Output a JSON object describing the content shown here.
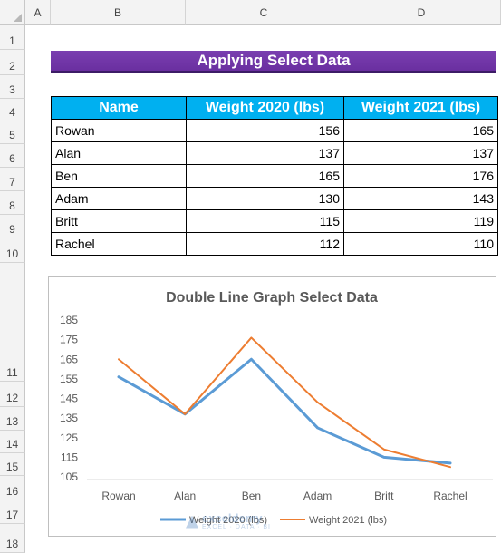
{
  "columns": [
    "A",
    "B",
    "C",
    "D"
  ],
  "rows": [
    "1",
    "2",
    "3",
    "4",
    "5",
    "6",
    "7",
    "8",
    "9",
    "10",
    "11",
    "12",
    "13",
    "14",
    "15",
    "16",
    "17",
    "18"
  ],
  "sheet_title": "Applying Select Data",
  "table": {
    "headers": [
      "Name",
      "Weight 2020 (lbs)",
      "Weight 2021 (lbs)"
    ],
    "rows": [
      {
        "name": "Rowan",
        "w2020": "156",
        "w2021": "165"
      },
      {
        "name": "Alan",
        "w2020": "137",
        "w2021": "137"
      },
      {
        "name": "Ben",
        "w2020": "165",
        "w2021": "176"
      },
      {
        "name": "Adam",
        "w2020": "130",
        "w2021": "143"
      },
      {
        "name": "Britt",
        "w2020": "115",
        "w2021": "119"
      },
      {
        "name": "Rachel",
        "w2020": "112",
        "w2021": "110"
      }
    ]
  },
  "chart_data": {
    "type": "line",
    "title": "Double Line Graph Select Data",
    "categories": [
      "Rowan",
      "Alan",
      "Ben",
      "Adam",
      "Britt",
      "Rachel"
    ],
    "series": [
      {
        "name": "Weight 2020 (lbs)",
        "values": [
          156,
          137,
          165,
          130,
          115,
          112
        ],
        "color": "#5b9bd5"
      },
      {
        "name": "Weight 2021 (lbs)",
        "values": [
          165,
          137,
          176,
          143,
          119,
          110
        ],
        "color": "#ed7d31"
      }
    ],
    "ylim": [
      105,
      185
    ],
    "yticks": [
      "185",
      "175",
      "165",
      "155",
      "145",
      "135",
      "125",
      "115",
      "105"
    ],
    "grid": false,
    "legend": "bottom"
  },
  "watermark": {
    "name": "exceldemy",
    "tagline": "EXCEL · DATA · BI"
  },
  "colors": {
    "title_bg": "#7030a0",
    "header_bg": "#00b0f0"
  }
}
